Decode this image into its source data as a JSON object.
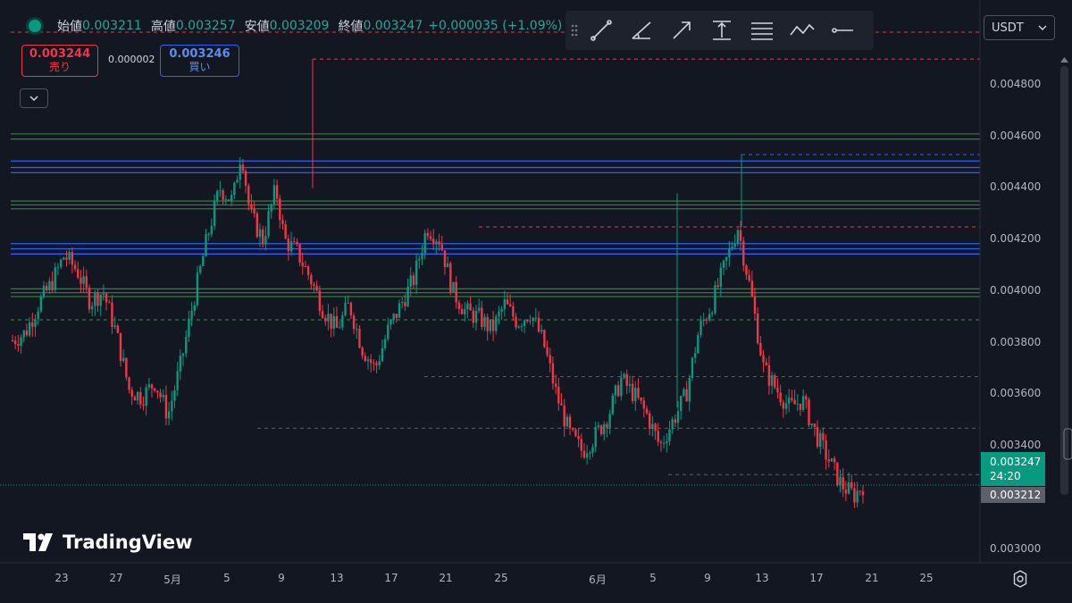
{
  "ohlc": {
    "open_label": "始値",
    "open": "0.003211",
    "high_label": "高値",
    "high": "0.003257",
    "low_label": "安値",
    "low": "0.003209",
    "close_label": "終値",
    "close": "0.003247",
    "change": "+0.000035 (+1.09%)"
  },
  "toolbar": {
    "tools": [
      "trend-line-icon",
      "angle-line-icon",
      "arrow-line-icon",
      "price-range-icon",
      "parallel-lines-icon",
      "polyline-icon",
      "horizontal-ray-icon"
    ]
  },
  "currency": {
    "selected": "USDT"
  },
  "trade": {
    "sell_price": "0.003244",
    "sell_label": "売り",
    "spread": "0.000002",
    "buy_price": "0.003246",
    "buy_label": "買い"
  },
  "brand": {
    "name": "TradingView"
  },
  "colors": {
    "up": "#089981",
    "down": "#f23645",
    "background": "#131722"
  },
  "chart_data": {
    "type": "candlestick",
    "price_ticks": [
      "0.004800",
      "0.004600",
      "0.004400",
      "0.004200",
      "0.004000",
      "0.003800",
      "0.003600",
      "0.003400",
      "0.003000"
    ],
    "time_ticks": [
      "23",
      "27",
      "5月",
      "5",
      "9",
      "13",
      "17",
      "21",
      "25",
      "6月",
      "5",
      "9",
      "13",
      "17",
      "21",
      "25"
    ],
    "ylim": [
      0.0029,
      0.00505
    ],
    "last_price": "0.003247",
    "countdown": "24:20",
    "prev_close": "0.003212",
    "path": [
      [
        0,
        0.00381
      ],
      [
        0.03,
        0.00384
      ],
      [
        0.06,
        0.00395
      ],
      [
        0.09,
        0.00403
      ],
      [
        0.12,
        0.00414
      ],
      [
        0.15,
        0.00408
      ],
      [
        0.18,
        0.00396
      ],
      [
        0.21,
        0.004
      ],
      [
        0.24,
        0.00384
      ],
      [
        0.27,
        0.00362
      ],
      [
        0.3,
        0.00359
      ],
      [
        0.33,
        0.00365
      ],
      [
        0.36,
        0.00352
      ],
      [
        0.39,
        0.00372
      ],
      [
        0.42,
        0.00397
      ],
      [
        0.45,
        0.0042
      ],
      [
        0.48,
        0.0044
      ],
      [
        0.51,
        0.00435
      ],
      [
        0.53,
        0.00455
      ],
      [
        0.55,
        0.0043
      ],
      [
        0.58,
        0.0042
      ],
      [
        0.61,
        0.0044
      ],
      [
        0.63,
        0.0042
      ],
      [
        0.66,
        0.00415
      ],
      [
        0.69,
        0.00405
      ],
      [
        0.72,
        0.00393
      ],
      [
        0.75,
        0.00385
      ],
      [
        0.78,
        0.00395
      ],
      [
        0.81,
        0.00378
      ],
      [
        0.84,
        0.0037
      ],
      [
        0.87,
        0.00385
      ],
      [
        0.9,
        0.00395
      ],
      [
        0.93,
        0.00405
      ],
      [
        0.96,
        0.00425
      ],
      [
        0.99,
        0.0042
      ],
      [
        1.02,
        0.004
      ],
      [
        1.05,
        0.00392
      ],
      [
        1.08,
        0.0039
      ],
      [
        1.11,
        0.00385
      ],
      [
        1.14,
        0.00395
      ],
      [
        1.17,
        0.00388
      ],
      [
        1.2,
        0.00392
      ],
      [
        1.23,
        0.0038
      ],
      [
        1.26,
        0.0036
      ],
      [
        1.29,
        0.00345
      ],
      [
        1.32,
        0.00338
      ],
      [
        1.35,
        0.00344
      ],
      [
        1.38,
        0.00352
      ],
      [
        1.41,
        0.00366
      ],
      [
        1.44,
        0.0036
      ],
      [
        1.47,
        0.00352
      ],
      [
        1.5,
        0.0034
      ],
      [
        1.53,
        0.0035
      ],
      [
        1.56,
        0.0036
      ],
      [
        1.59,
        0.00385
      ],
      [
        1.62,
        0.00395
      ],
      [
        1.65,
        0.0041
      ],
      [
        1.68,
        0.00425
      ],
      [
        1.71,
        0.004
      ],
      [
        1.74,
        0.0037
      ],
      [
        1.77,
        0.00362
      ],
      [
        1.8,
        0.00355
      ],
      [
        1.83,
        0.00358
      ],
      [
        1.86,
        0.00345
      ],
      [
        1.89,
        0.00335
      ],
      [
        1.92,
        0.00325
      ],
      [
        1.95,
        0.00321
      ],
      [
        1.97,
        0.00325
      ]
    ],
    "price_lines": [
      {
        "price": 0.00461,
        "color": "#2e7d32",
        "style": "solid"
      },
      {
        "price": 0.00459,
        "color": "#2e7d32",
        "style": "solid"
      },
      {
        "price": 0.004505,
        "color": "#2962ff",
        "style": "solid"
      },
      {
        "price": 0.00448,
        "color": "#2962ff",
        "style": "solid"
      },
      {
        "price": 0.00446,
        "color": "#2962ff",
        "style": "solid"
      },
      {
        "price": 0.00435,
        "color": "#2e7d32",
        "style": "solid"
      },
      {
        "price": 0.004335,
        "color": "#2e7d32",
        "style": "solid"
      },
      {
        "price": 0.00432,
        "color": "#2e7d32",
        "style": "solid"
      },
      {
        "price": 0.004185,
        "color": "#2962ff",
        "style": "solid"
      },
      {
        "price": 0.004165,
        "color": "#2962ff",
        "style": "solid"
      },
      {
        "price": 0.004145,
        "color": "#2962ff",
        "style": "solid"
      },
      {
        "price": 0.00401,
        "color": "#2e7d32",
        "style": "solid"
      },
      {
        "price": 0.003995,
        "color": "#2e7d32",
        "style": "solid"
      },
      {
        "price": 0.00398,
        "color": "#2e7d32",
        "style": "solid"
      },
      {
        "price": 0.00389,
        "color": "#2e7d32",
        "style": "dashed"
      }
    ]
  }
}
